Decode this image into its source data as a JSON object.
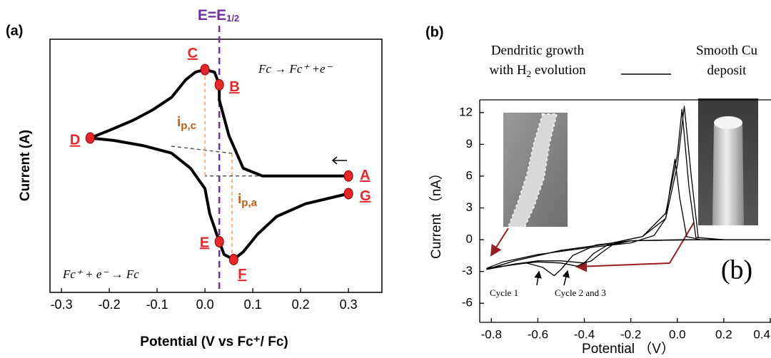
{
  "chart_data": [
    {
      "type": "line",
      "panel_label": "(a)",
      "x_label": "Potential (V vs Fc⁺/ Fc)",
      "y_label": "Current (A)",
      "xlim": [
        -0.324,
        0.37
      ],
      "xticks": [
        -0.3,
        -0.2,
        -0.1,
        {
          "value": 0,
          "label": "0.0"
        },
        0.1,
        0.2,
        0.3
      ],
      "ylim": [
        0,
        10
      ],
      "series": [
        {
          "color": "#000000",
          "x": [
            0.3,
            0.2,
            0.12,
            0.08,
            0.05,
            0.03,
            0.03,
            0.02,
            0.0,
            -0.02,
            -0.04,
            -0.07,
            -0.11,
            -0.15,
            -0.2,
            -0.24,
            -0.19,
            -0.13,
            -0.07,
            -0.03,
            0.0,
            0.01,
            0.03,
            0.04,
            0.06,
            0.08,
            0.11,
            0.15,
            0.21,
            0.3
          ],
          "values": [
            4.6,
            4.6,
            4.6,
            4.9,
            6.2,
            7.6,
            8.2,
            8.7,
            8.8,
            8.7,
            8.4,
            7.7,
            7.2,
            6.8,
            6.4,
            6.1,
            6.0,
            5.8,
            5.5,
            4.9,
            4.1,
            3.1,
            2.0,
            1.5,
            1.3,
            1.6,
            2.3,
            3.0,
            3.5,
            3.9
          ]
        }
      ],
      "point_color": "#e8262a",
      "points": [
        {
          "label": "A",
          "x": 0.3,
          "y": 4.6
        },
        {
          "label": "B",
          "x": 0.03,
          "y": 8.2
        },
        {
          "label": "C",
          "x": 0.0,
          "y": 8.8
        },
        {
          "label": "D",
          "x": -0.24,
          "y": 6.1
        },
        {
          "label": "E",
          "x": 0.03,
          "y": 2.0
        },
        {
          "label": "F",
          "x": 0.06,
          "y": 1.3
        },
        {
          "label": "G",
          "x": 0.3,
          "y": 3.9
        }
      ],
      "vline": {
        "x": 0.03,
        "label": "E=E",
        "label_sub": "1/2",
        "color": "#7030a0"
      },
      "annotations": [
        {
          "text": "i",
          "sub": "p,c"
        },
        {
          "text": "i",
          "sub": "p,a"
        },
        {
          "text": "Fc → Fc⁺ +e⁻"
        },
        {
          "text": "Fc⁺ + e⁻ → Fc"
        }
      ]
    },
    {
      "type": "line",
      "panel_label": "(b)",
      "x_label": "Potential （V）",
      "y_label": "Current （nA）",
      "xlim": [
        -0.85,
        0.4
      ],
      "xticks": [
        -0.8,
        -0.6,
        -0.4,
        -0.2,
        {
          "value": 0,
          "label": "0.0"
        },
        0.2,
        0.4
      ],
      "ylim": [
        -7.8,
        13.2
      ],
      "yticks": [
        -6,
        -3,
        0,
        3,
        6,
        9,
        12
      ],
      "series": [
        {
          "color": "#000000",
          "x": [
            0.4,
            0.2,
            0.0,
            -0.2,
            -0.35,
            -0.45,
            -0.5,
            -0.53,
            -0.58,
            -0.65,
            -0.75,
            -0.82,
            -0.75,
            -0.6,
            -0.4,
            -0.2,
            -0.1,
            -0.05,
            -0.03,
            -0.01,
            0.01,
            0.04,
            0.1,
            0.2,
            0.4
          ],
          "values": [
            0,
            0,
            0,
            -0.1,
            -0.5,
            -1.5,
            -2.8,
            -3.4,
            -2.6,
            -2.2,
            -2.5,
            -2.7,
            -2.1,
            -1.4,
            -0.8,
            -0.3,
            0.4,
            2.0,
            5.0,
            7.6,
            4.0,
            0.3,
            0,
            0,
            0
          ]
        },
        {
          "color": "#000000",
          "x": [
            0.4,
            0.1,
            -0.2,
            -0.3,
            -0.36,
            -0.4,
            -0.43,
            -0.5,
            -0.6,
            -0.7,
            -0.82,
            -0.7,
            -0.5,
            -0.3,
            -0.15,
            -0.05,
            0.0,
            0.02,
            0.05,
            0.08,
            0.2,
            0.4
          ],
          "values": [
            0,
            0,
            -0.1,
            -0.5,
            -1.3,
            -2.2,
            -2.5,
            -2.2,
            -2.1,
            -2.3,
            -2.8,
            -2.0,
            -1.0,
            -0.4,
            0.3,
            2.5,
            8.0,
            12.3,
            5.0,
            0.2,
            0,
            0
          ]
        },
        {
          "color": "#000000",
          "x": [
            0.4,
            0.1,
            -0.2,
            -0.28,
            -0.33,
            -0.37,
            -0.4,
            -0.5,
            -0.6,
            -0.7,
            -0.82,
            -0.7,
            -0.5,
            -0.3,
            -0.15,
            -0.05,
            0.0,
            0.03,
            0.06,
            0.09,
            0.2,
            0.4
          ],
          "values": [
            0,
            0,
            -0.1,
            -0.5,
            -1.3,
            -2.0,
            -2.2,
            -2.0,
            -2.0,
            -2.3,
            -2.8,
            -2.0,
            -1.0,
            -0.4,
            0.3,
            2.0,
            7.0,
            12.6,
            6.0,
            0.2,
            0,
            0
          ]
        }
      ],
      "annotations": [
        {
          "lines": [
            "Dendritic growth",
            [
              "with H",
              "2",
              " evolution"
            ]
          ]
        },
        {
          "lines": [
            "Smooth Cu",
            "deposit"
          ]
        },
        {
          "text": "Cycle 1"
        },
        {
          "text": "Cycle 2 and 3"
        },
        {
          "text": "(b)"
        }
      ]
    }
  ]
}
